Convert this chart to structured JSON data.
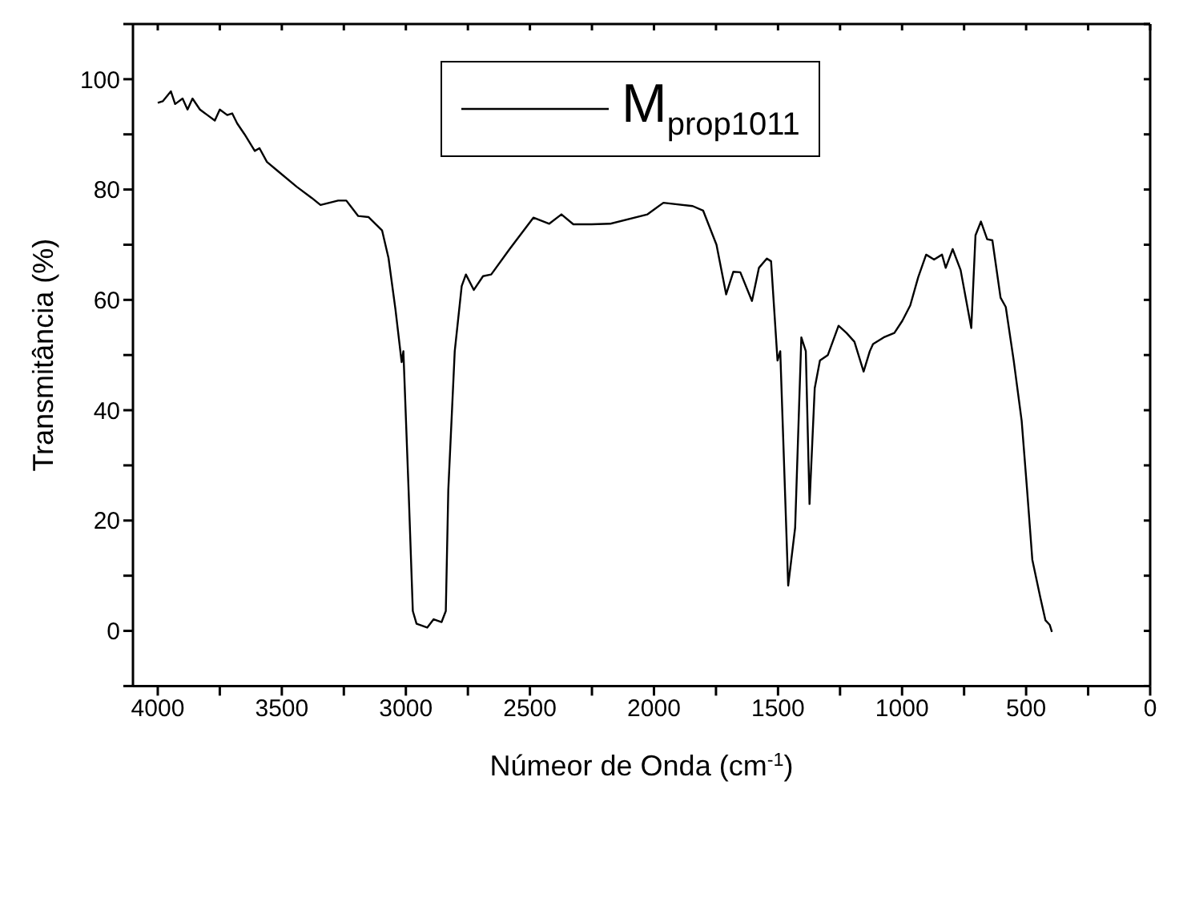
{
  "chart_data": {
    "type": "line",
    "xlabel": "Númeor de Onda (cm$^{-1}$)",
    "ylabel": "Transmitância (%)",
    "xlim": [
      4100,
      0
    ],
    "ylim": [
      -10,
      110
    ],
    "xticks": [
      4000,
      {
        "value": 3750,
        "label": null
      },
      3500,
      {
        "value": 3250,
        "label": null
      },
      3000,
      {
        "value": 2750,
        "label": null
      },
      2500,
      {
        "value": 2250,
        "label": null
      },
      2000,
      {
        "value": 1750,
        "label": null
      },
      1500,
      {
        "value": 1250,
        "label": null
      },
      1000,
      {
        "value": 750,
        "label": null
      },
      500,
      {
        "value": 250,
        "label": null
      },
      0
    ],
    "yticks": [
      {
        "value": -10,
        "label": null
      },
      0,
      {
        "value": 10,
        "label": null
      },
      20,
      {
        "value": 30,
        "label": null
      },
      40,
      {
        "value": 50,
        "label": null
      },
      60,
      {
        "value": 70,
        "label": null
      },
      80,
      {
        "value": 90,
        "label": null
      },
      100,
      {
        "value": 110,
        "label": null
      }
    ],
    "grid": false,
    "legend": "top",
    "marker": "none",
    "line_style": "solid",
    "x": [
      4000,
      3980,
      3947,
      3930,
      3900,
      3880,
      3860,
      3830,
      3800,
      3770,
      3750,
      3720,
      3700,
      3680,
      3650,
      3609,
      3590,
      3560,
      3520,
      3440,
      3380,
      3344,
      3273,
      3240,
      3192,
      3150,
      3096,
      3070,
      3042,
      3017,
      3010,
      2989,
      2972,
      2957,
      2914,
      2888,
      2856,
      2839,
      2829,
      2803,
      2775,
      2758,
      2726,
      2689,
      2656,
      2582,
      2486,
      2422,
      2373,
      2325,
      2251,
      2176,
      2026,
      1962,
      1844,
      1802,
      1748,
      1709,
      1680,
      1652,
      1605,
      1577,
      1545,
      1528,
      1502,
      1491,
      1459,
      1431,
      1406,
      1388,
      1373,
      1352,
      1331,
      1299,
      1256,
      1224,
      1192,
      1155,
      1130,
      1117,
      1074,
      1031,
      999,
      967,
      935,
      903,
      871,
      839,
      824,
      796,
      764,
      721,
      704,
      682,
      657,
      636,
      603,
      582,
      550,
      518,
      496,
      475,
      443,
      422,
      405,
      396
    ],
    "series": [
      {
        "name": "M$_{prop1011}$",
        "color": "#000000",
        "values": [
          95.7,
          96,
          97.8,
          95.5,
          96.5,
          94.5,
          96.5,
          94.5,
          93.5,
          92.5,
          94.5,
          93.5,
          93.8,
          92,
          90,
          87,
          87.5,
          85,
          83.5,
          80.5,
          78.5,
          77.2,
          78,
          78,
          75.2,
          75,
          72.6,
          67.6,
          58.3,
          48.7,
          50.7,
          25.5,
          3.6,
          1.3,
          0.6,
          2.1,
          1.6,
          3.6,
          25.5,
          50.7,
          62.5,
          64.6,
          61.8,
          64.3,
          64.6,
          69.2,
          74.9,
          73.8,
          75.5,
          73.7,
          73.7,
          73.8,
          75.5,
          77.6,
          77,
          76.2,
          70,
          61,
          65.1,
          65,
          59.8,
          65.8,
          67.5,
          67,
          49,
          50.7,
          8.2,
          18.7,
          53.2,
          50.7,
          23,
          44,
          49,
          50,
          55.3,
          54,
          52.4,
          47,
          50.7,
          52,
          53.2,
          54,
          56.2,
          59,
          64.1,
          68.2,
          67.3,
          68.2,
          65.8,
          69.2,
          65.4,
          54.9,
          71.7,
          74.2,
          71,
          70.8,
          60.4,
          58.7,
          49,
          38.1,
          25.5,
          12.9,
          6.1,
          1.9,
          1.1,
          -0.2
        ]
      }
    ]
  }
}
